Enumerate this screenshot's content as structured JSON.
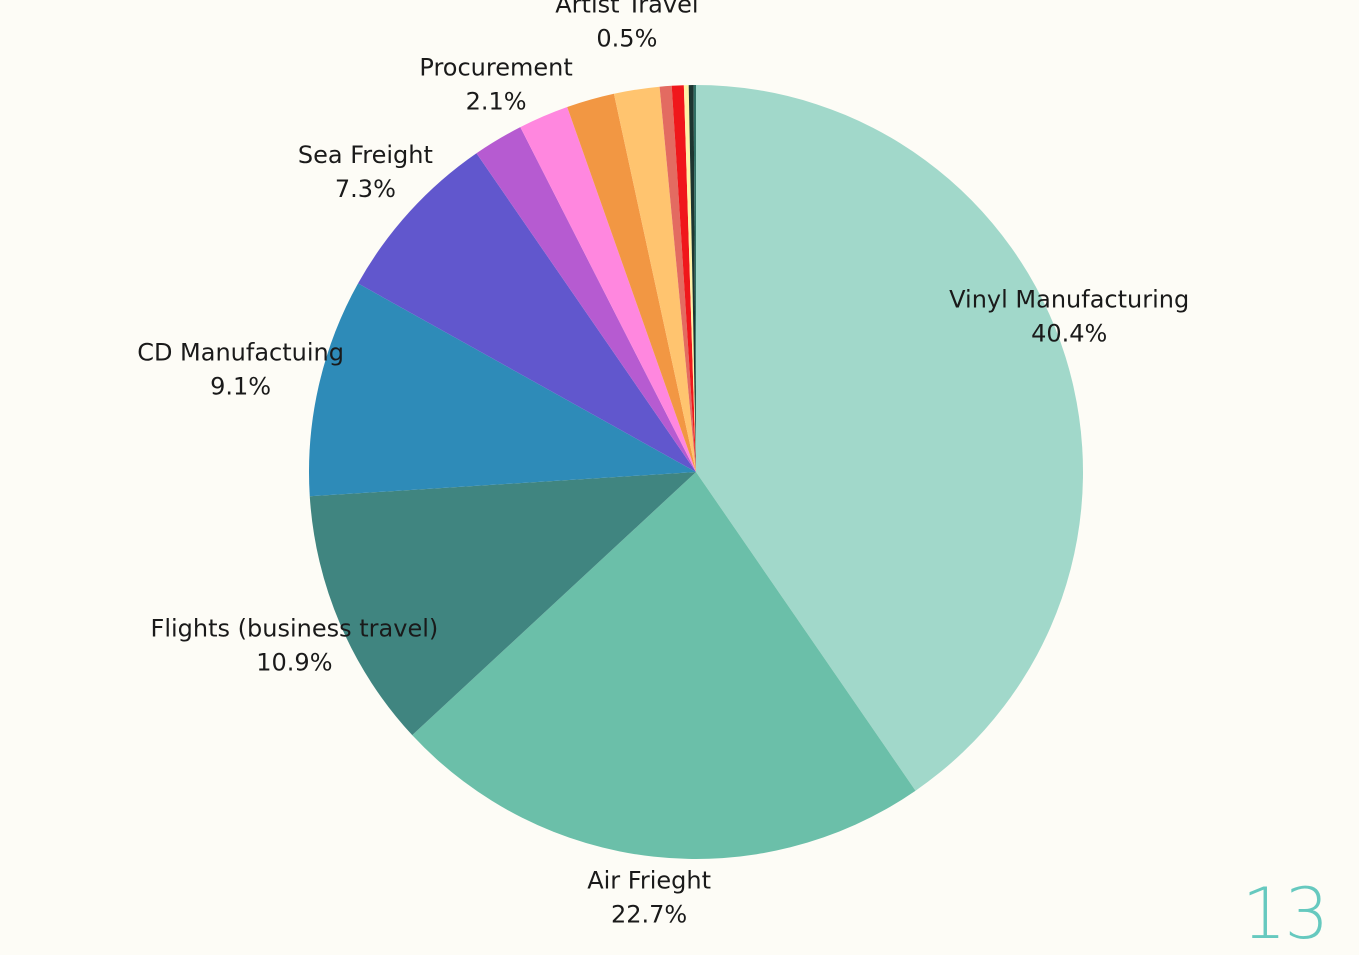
{
  "page": {
    "number": "13",
    "number_color": "#66c9bf",
    "background": "#fdfcf6"
  },
  "chart_data": {
    "type": "pie",
    "title": "",
    "start_angle_deg": 0,
    "direction": "clockwise",
    "slices": [
      {
        "name": "Vinyl Manufacturing",
        "percent_label": "40.4%",
        "value": 40.4,
        "color": "#a1d8ca",
        "labeled": true
      },
      {
        "name": "Air Frieght",
        "percent_label": "22.7%",
        "value": 22.7,
        "color": "#6bbfa9",
        "labeled": true
      },
      {
        "name": "Flights (business travel)",
        "percent_label": "10.9%",
        "value": 10.9,
        "color": "#408580",
        "labeled": true
      },
      {
        "name": "CD Manufactuing",
        "percent_label": "9.1%",
        "value": 9.1,
        "color": "#2e8bb8",
        "labeled": true
      },
      {
        "name": "Sea Freight",
        "percent_label": "7.3%",
        "value": 7.3,
        "color": "#6157cd",
        "labeled": true
      },
      {
        "name": "",
        "percent_label": "",
        "value": 2.1,
        "color": "#b65bd1",
        "labeled": false
      },
      {
        "name": "Procurement",
        "percent_label": "2.1%",
        "value": 2.1,
        "color": "#ff87df",
        "labeled": true
      },
      {
        "name": "",
        "percent_label": "",
        "value": 2.0,
        "color": "#f29743",
        "labeled": false
      },
      {
        "name": "",
        "percent_label": "",
        "value": 1.9,
        "color": "#ffc46f",
        "labeled": false
      },
      {
        "name": "",
        "percent_label": "",
        "value": 0.5,
        "color": "#e36b61",
        "labeled": false
      },
      {
        "name": "Artist Travel",
        "percent_label": "0.5%",
        "value": 0.5,
        "color": "#f0171b",
        "labeled": true
      },
      {
        "name": "",
        "percent_label": "",
        "value": 0.2,
        "color": "#fff2a6",
        "labeled": false
      },
      {
        "name": "",
        "percent_label": "",
        "value": 0.2,
        "color": "#1d3530",
        "labeled": false
      },
      {
        "name": "",
        "percent_label": "",
        "value": 0.1,
        "color": "#2f6e63",
        "labeled": false
      }
    ]
  }
}
